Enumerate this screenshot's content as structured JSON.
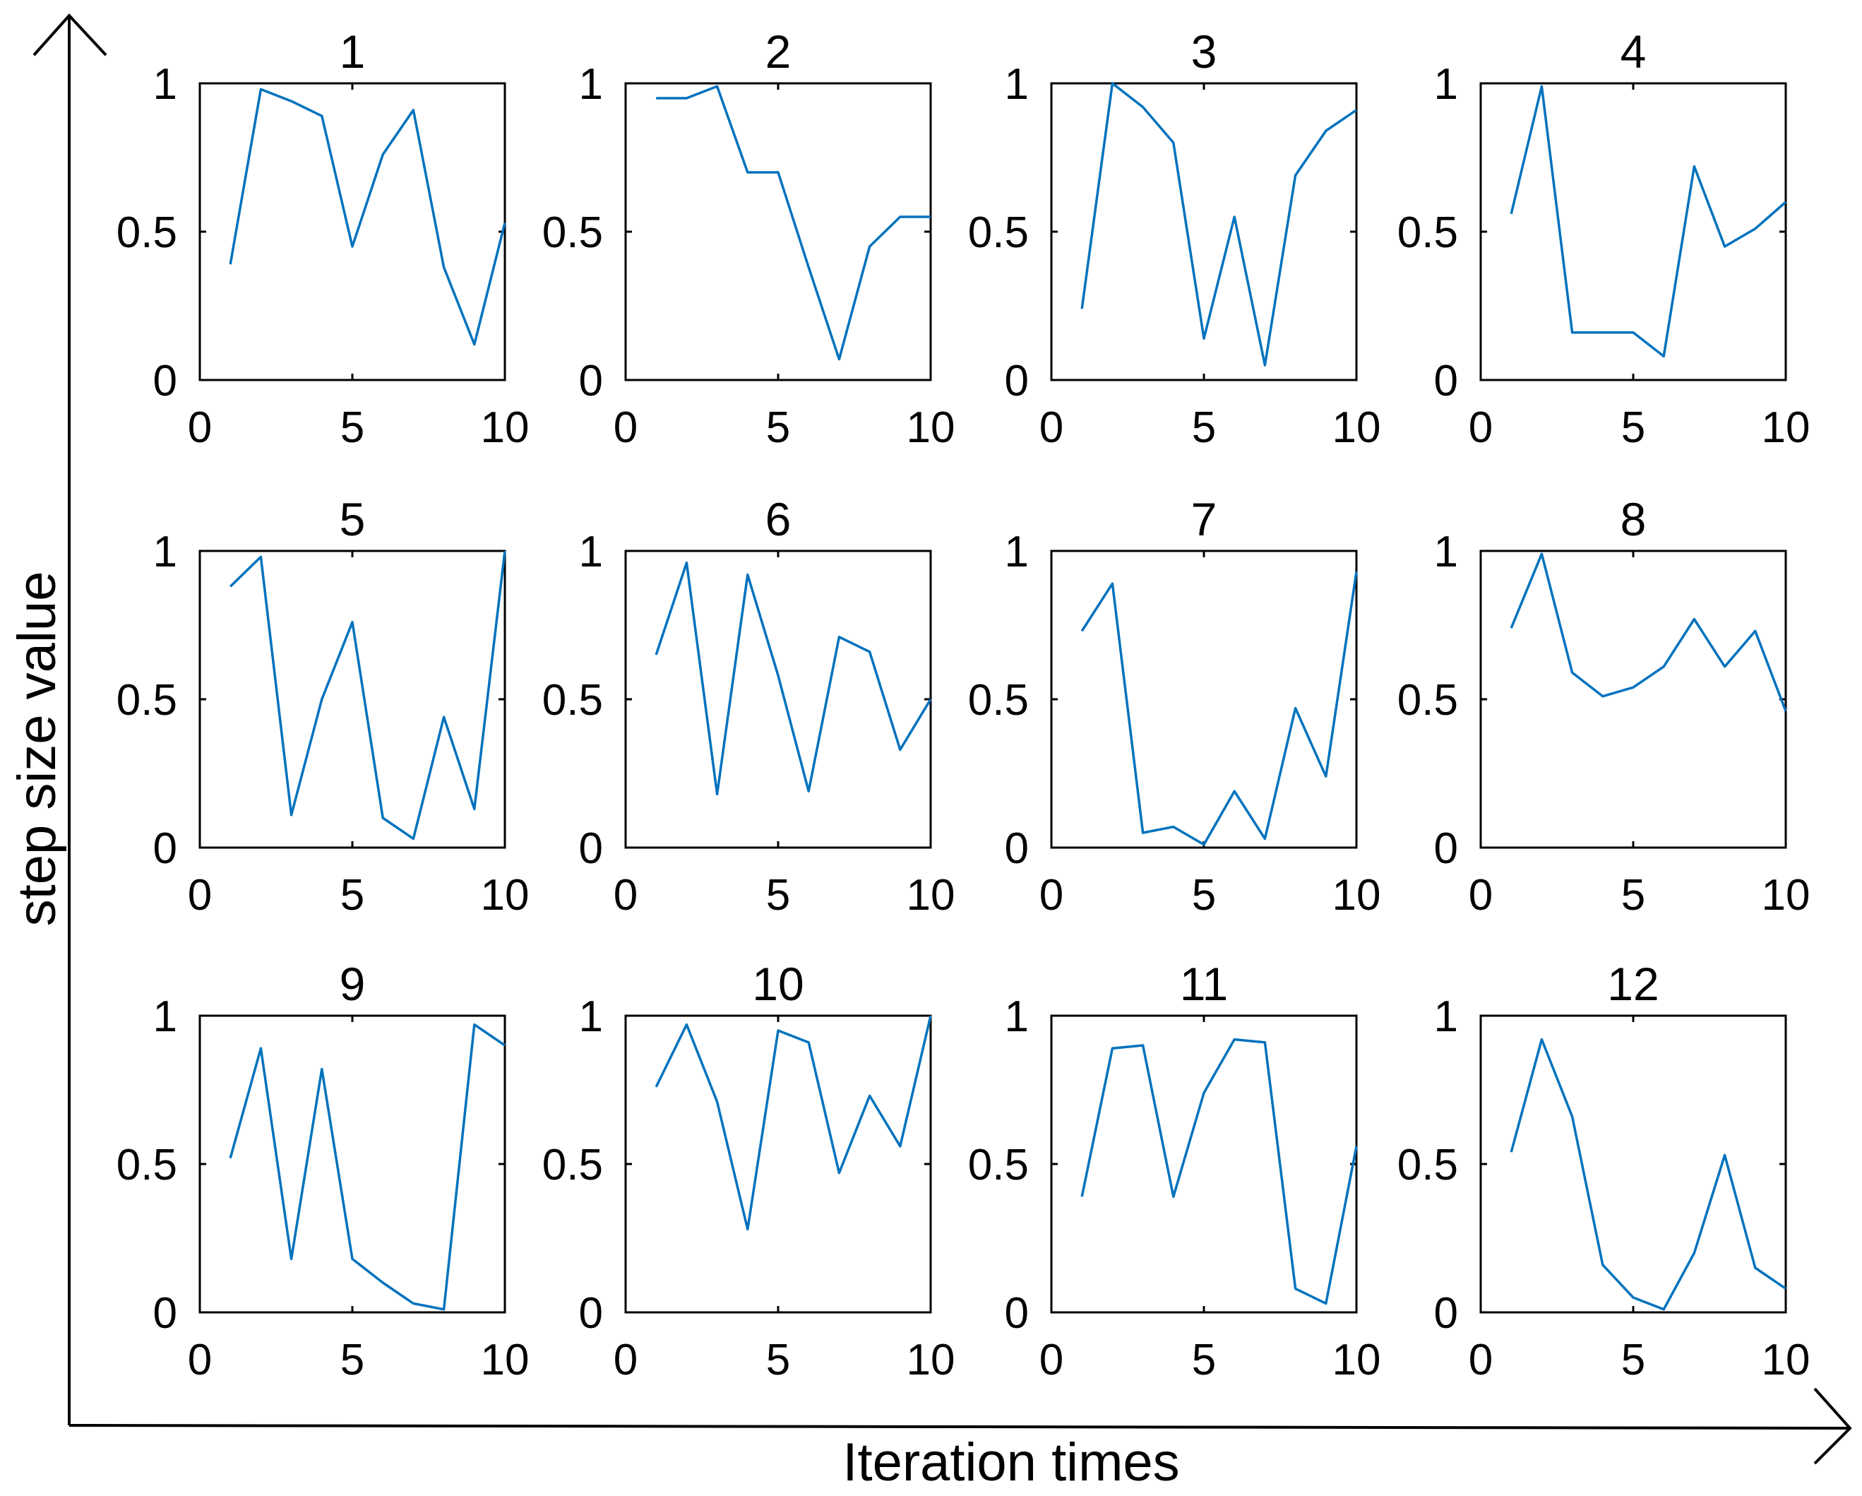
{
  "figure": {
    "x_axis_title": "Iteration times",
    "y_axis_title": "step size value"
  },
  "colors": {
    "line": "#0072BD",
    "axes": "#000000"
  },
  "chart_data": [
    {
      "type": "line",
      "title": "1",
      "xlim": [
        0,
        10
      ],
      "ylim": [
        0,
        1
      ],
      "xticks": [
        "0",
        "5",
        "10"
      ],
      "yticks": [
        "0",
        "0.5",
        "1"
      ],
      "x": [
        1,
        2,
        3,
        4,
        5,
        6,
        7,
        8,
        9,
        10
      ],
      "values": [
        0.39,
        0.98,
        0.94,
        0.89,
        0.45,
        0.76,
        0.91,
        0.38,
        0.12,
        0.53
      ]
    },
    {
      "type": "line",
      "title": "2",
      "xlim": [
        0,
        10
      ],
      "ylim": [
        0,
        1
      ],
      "xticks": [
        "0",
        "5",
        "10"
      ],
      "yticks": [
        "0",
        "0.5",
        "1"
      ],
      "x": [
        1,
        2,
        3,
        4,
        5,
        6,
        7,
        8,
        9,
        10
      ],
      "values": [
        0.95,
        0.95,
        0.99,
        0.7,
        0.7,
        0.38,
        0.07,
        0.45,
        0.55,
        0.55
      ]
    },
    {
      "type": "line",
      "title": "3",
      "xlim": [
        0,
        10
      ],
      "ylim": [
        0,
        1
      ],
      "xticks": [
        "0",
        "5",
        "10"
      ],
      "yticks": [
        "0",
        "0.5",
        "1"
      ],
      "x": [
        1,
        2,
        3,
        4,
        5,
        6,
        7,
        8,
        9,
        10
      ],
      "values": [
        0.24,
        1.0,
        0.92,
        0.8,
        0.14,
        0.55,
        0.05,
        0.69,
        0.84,
        0.91
      ]
    },
    {
      "type": "line",
      "title": "4",
      "xlim": [
        0,
        10
      ],
      "ylim": [
        0,
        1
      ],
      "xticks": [
        "0",
        "5",
        "10"
      ],
      "yticks": [
        "0",
        "0.5",
        "1"
      ],
      "x": [
        1,
        2,
        3,
        4,
        5,
        6,
        7,
        8,
        9,
        10
      ],
      "values": [
        0.56,
        0.99,
        0.16,
        0.16,
        0.16,
        0.08,
        0.72,
        0.45,
        0.51,
        0.6
      ]
    },
    {
      "type": "line",
      "title": "5",
      "xlim": [
        0,
        10
      ],
      "ylim": [
        0,
        1
      ],
      "xticks": [
        "0",
        "5",
        "10"
      ],
      "yticks": [
        "0",
        "0.5",
        "1"
      ],
      "x": [
        1,
        2,
        3,
        4,
        5,
        6,
        7,
        8,
        9,
        10
      ],
      "values": [
        0.88,
        0.98,
        0.11,
        0.5,
        0.76,
        0.1,
        0.03,
        0.44,
        0.13,
        1.0
      ]
    },
    {
      "type": "line",
      "title": "6",
      "xlim": [
        0,
        10
      ],
      "ylim": [
        0,
        1
      ],
      "xticks": [
        "0",
        "5",
        "10"
      ],
      "yticks": [
        "0",
        "0.5",
        "1"
      ],
      "x": [
        1,
        2,
        3,
        4,
        5,
        6,
        7,
        8,
        9,
        10
      ],
      "values": [
        0.65,
        0.96,
        0.18,
        0.92,
        0.58,
        0.19,
        0.71,
        0.66,
        0.33,
        0.5
      ]
    },
    {
      "type": "line",
      "title": "7",
      "xlim": [
        0,
        10
      ],
      "ylim": [
        0,
        1
      ],
      "xticks": [
        "0",
        "5",
        "10"
      ],
      "yticks": [
        "0",
        "0.5",
        "1"
      ],
      "x": [
        1,
        2,
        3,
        4,
        5,
        6,
        7,
        8,
        9,
        10
      ],
      "values": [
        0.73,
        0.89,
        0.05,
        0.07,
        0.01,
        0.19,
        0.03,
        0.47,
        0.24,
        0.93
      ]
    },
    {
      "type": "line",
      "title": "8",
      "xlim": [
        0,
        10
      ],
      "ylim": [
        0,
        1
      ],
      "xticks": [
        "0",
        "5",
        "10"
      ],
      "yticks": [
        "0",
        "0.5",
        "1"
      ],
      "x": [
        1,
        2,
        3,
        4,
        5,
        6,
        7,
        8,
        9,
        10
      ],
      "values": [
        0.74,
        0.99,
        0.59,
        0.51,
        0.54,
        0.61,
        0.77,
        0.61,
        0.73,
        0.46
      ]
    },
    {
      "type": "line",
      "title": "9",
      "xlim": [
        0,
        10
      ],
      "ylim": [
        0,
        1
      ],
      "xticks": [
        "0",
        "5",
        "10"
      ],
      "yticks": [
        "0",
        "0.5",
        "1"
      ],
      "x": [
        1,
        2,
        3,
        4,
        5,
        6,
        7,
        8,
        9,
        10
      ],
      "values": [
        0.52,
        0.89,
        0.18,
        0.82,
        0.18,
        0.1,
        0.03,
        0.01,
        0.97,
        0.9
      ]
    },
    {
      "type": "line",
      "title": "10",
      "xlim": [
        0,
        10
      ],
      "ylim": [
        0,
        1
      ],
      "xticks": [
        "0",
        "5",
        "10"
      ],
      "yticks": [
        "0",
        "0.5",
        "1"
      ],
      "x": [
        1,
        2,
        3,
        4,
        5,
        6,
        7,
        8,
        9,
        10
      ],
      "values": [
        0.76,
        0.97,
        0.71,
        0.28,
        0.95,
        0.91,
        0.47,
        0.73,
        0.56,
        1.0
      ]
    },
    {
      "type": "line",
      "title": "11",
      "xlim": [
        0,
        10
      ],
      "ylim": [
        0,
        1
      ],
      "xticks": [
        "0",
        "5",
        "10"
      ],
      "yticks": [
        "0",
        "0.5",
        "1"
      ],
      "x": [
        1,
        2,
        3,
        4,
        5,
        6,
        7,
        8,
        9,
        10
      ],
      "values": [
        0.39,
        0.89,
        0.9,
        0.39,
        0.74,
        0.92,
        0.91,
        0.08,
        0.03,
        0.56
      ]
    },
    {
      "type": "line",
      "title": "12",
      "xlim": [
        0,
        10
      ],
      "ylim": [
        0,
        1
      ],
      "xticks": [
        "0",
        "5",
        "10"
      ],
      "yticks": [
        "0",
        "0.5",
        "1"
      ],
      "x": [
        1,
        2,
        3,
        4,
        5,
        6,
        7,
        8,
        9,
        10
      ],
      "values": [
        0.54,
        0.92,
        0.66,
        0.16,
        0.05,
        0.01,
        0.2,
        0.53,
        0.15,
        0.08
      ]
    }
  ]
}
